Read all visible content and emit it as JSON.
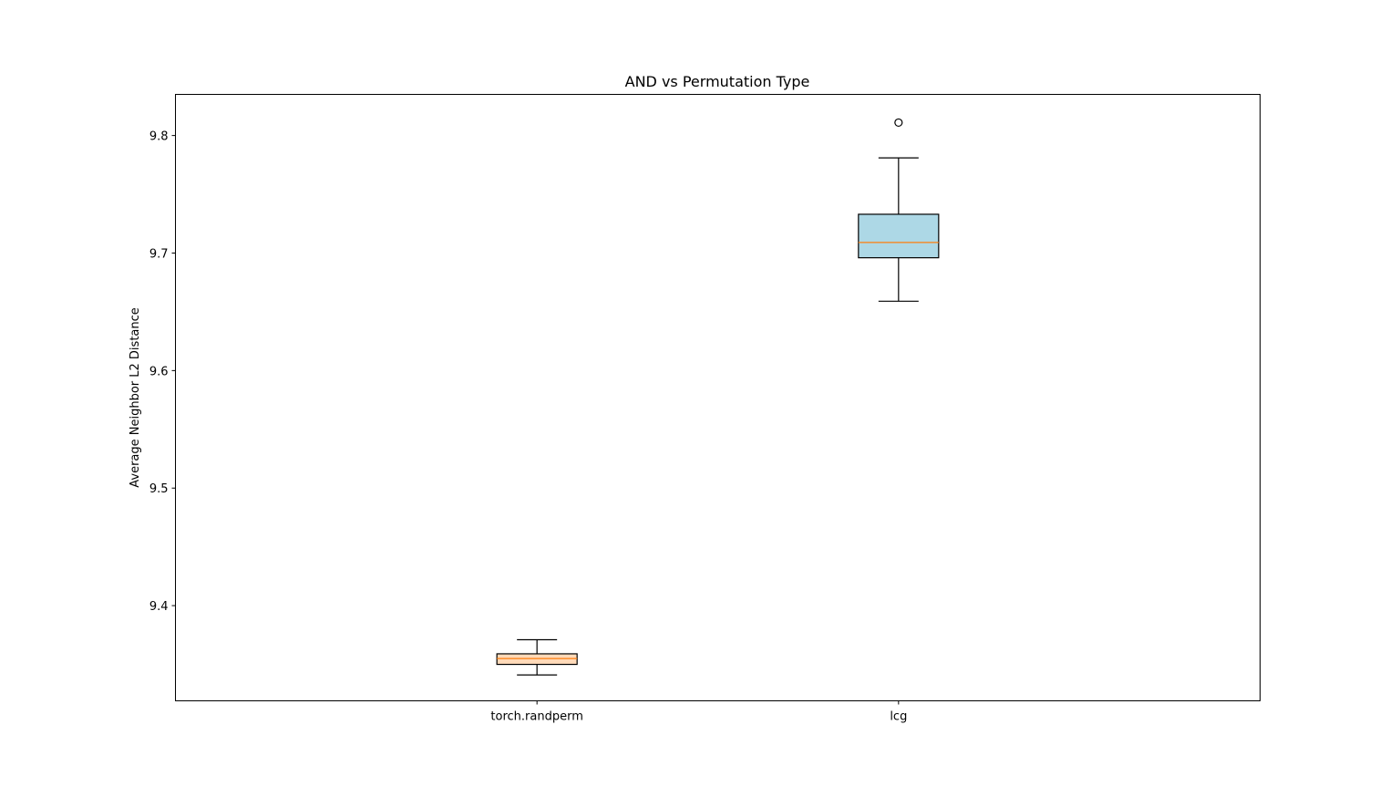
{
  "chart_data": {
    "type": "box",
    "title": "AND vs Permutation Type",
    "xlabel": "",
    "ylabel": "Average Neighbor L2 Distance",
    "ylim": [
      9.319,
      9.835
    ],
    "yticks": [
      "9.4",
      "9.5",
      "9.6",
      "9.7",
      "9.8"
    ],
    "grid": false,
    "legend": "none",
    "categories": [
      "torch.randperm",
      "lcg"
    ],
    "boxes": [
      {
        "label": "torch.randperm",
        "whisker_low": 9.341,
        "q1": 9.35,
        "median": 9.355,
        "q3": 9.359,
        "whisker_high": 9.371,
        "outliers": [],
        "fill": "#ffdab9"
      },
      {
        "label": "lcg",
        "whisker_low": 9.659,
        "q1": 9.696,
        "median": 9.709,
        "q3": 9.733,
        "whisker_high": 9.781,
        "outliers": [
          9.811
        ],
        "fill": "#add8e6"
      }
    ],
    "median_color": "#ff7f0e"
  }
}
